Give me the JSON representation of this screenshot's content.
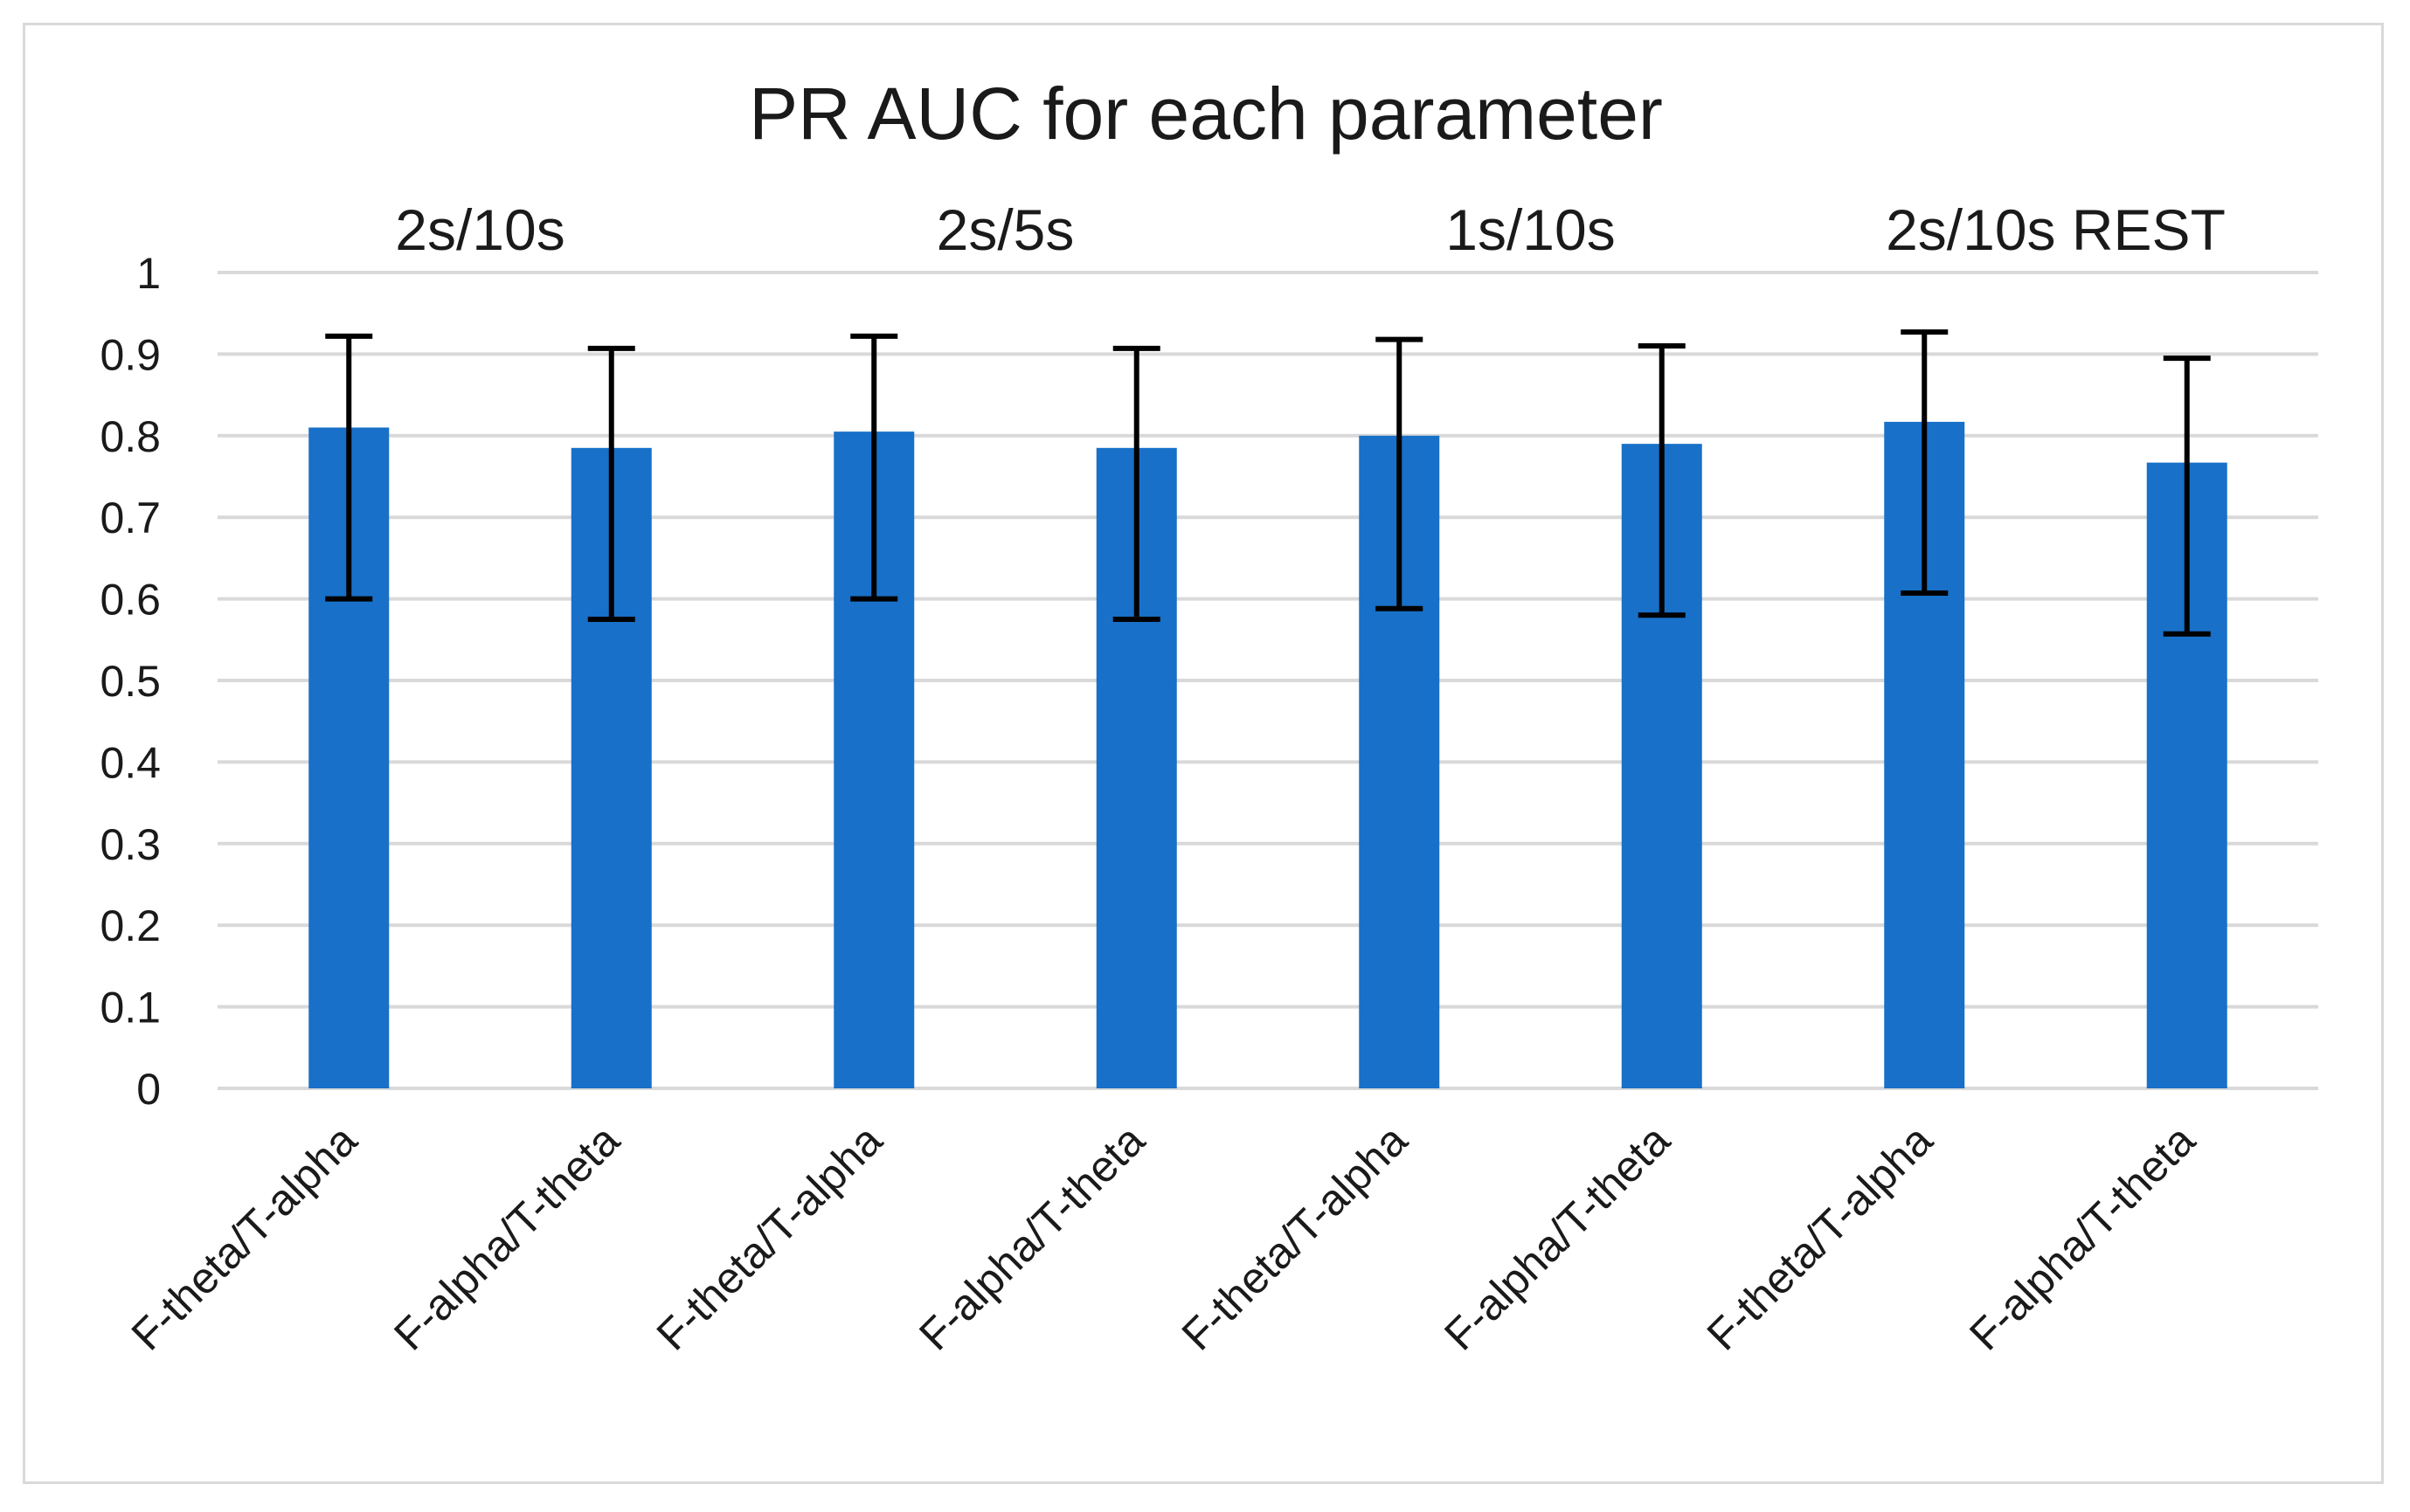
{
  "chart_data": {
    "type": "bar",
    "title": "PR AUC for each parameter",
    "xlabel": "",
    "ylabel": "",
    "ylim": [
      0,
      1
    ],
    "yticks": [
      "0",
      "0.1",
      "0.2",
      "0.3",
      "0.4",
      "0.5",
      "0.6",
      "0.7",
      "0.8",
      "0.9",
      "1"
    ],
    "grid": true,
    "legend": "none",
    "bar_color": "#1870c8",
    "error_bar_color": "#000000",
    "groups": [
      "2s/10s",
      "2s/5s",
      "1s/10s",
      "2s/10s REST"
    ],
    "categories": [
      "F-theta/T-alpha",
      "F-alpha/T-theta",
      "F-theta/T-alpha",
      "F-alpha/T-theta",
      "F-theta/T-alpha",
      "F-alpha/T-theta",
      "F-theta/T-alpha",
      "F-alpha/T-theta"
    ],
    "values": [
      0.81,
      0.785,
      0.805,
      0.785,
      0.8,
      0.79,
      0.817,
      0.767
    ],
    "error_low": [
      0.6,
      0.575,
      0.6,
      0.575,
      0.588,
      0.58,
      0.607,
      0.557
    ],
    "error_high": [
      0.922,
      0.907,
      0.922,
      0.907,
      0.918,
      0.91,
      0.927,
      0.895
    ]
  }
}
